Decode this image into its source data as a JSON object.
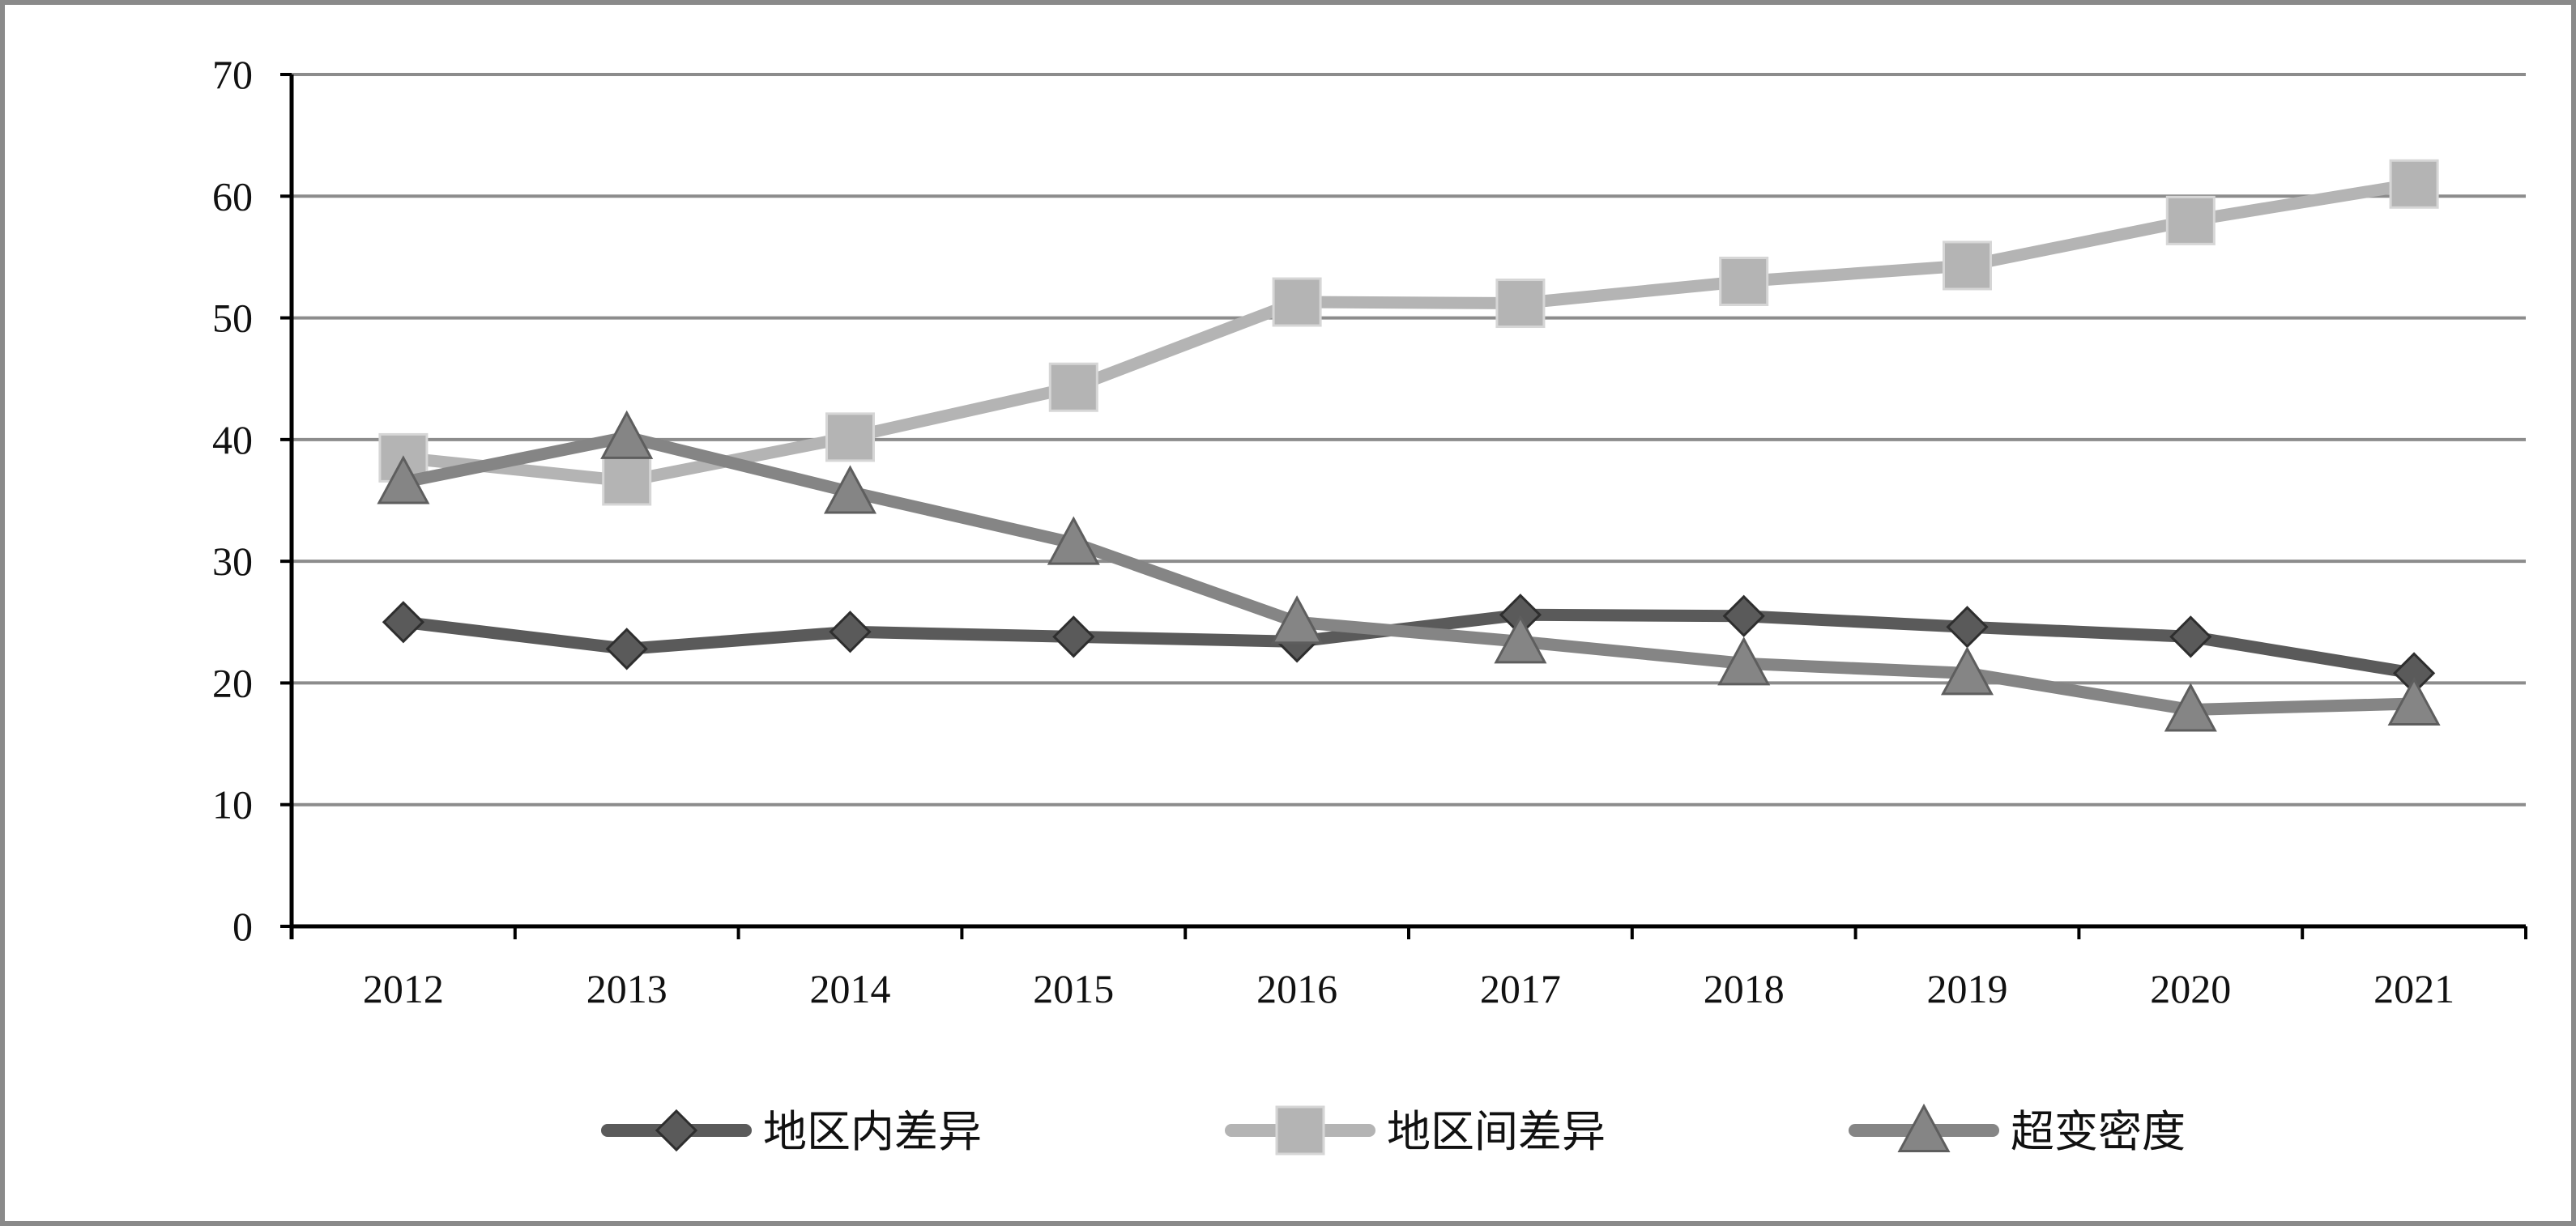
{
  "chart_data": {
    "type": "line",
    "title": "",
    "xlabel": "",
    "ylabel": "",
    "categories": [
      "2012",
      "2013",
      "2014",
      "2015",
      "2016",
      "2017",
      "2018",
      "2019",
      "2020",
      "2021"
    ],
    "ylim": [
      0,
      70
    ],
    "yticks": [
      "0",
      "10",
      "20",
      "30",
      "40",
      "50",
      "60",
      "70"
    ],
    "grid": "horizontal",
    "legend_position": "bottom",
    "series": [
      {
        "name": "地区内差异",
        "marker": "diamond",
        "color": "#5a5a5a",
        "values": [
          25.0,
          22.8,
          24.2,
          23.8,
          23.4,
          25.6,
          25.5,
          24.6,
          23.8,
          20.8
        ]
      },
      {
        "name": "地区间差异",
        "marker": "square",
        "color": "#b4b4b4",
        "values": [
          38.5,
          36.6,
          40.2,
          44.3,
          51.3,
          51.2,
          53.0,
          54.3,
          58.0,
          61.0
        ]
      },
      {
        "name": "超变密度",
        "marker": "triangle",
        "color": "#858585",
        "values": [
          36.5,
          40.2,
          35.7,
          31.5,
          25.0,
          23.4,
          21.6,
          20.8,
          17.8,
          18.3
        ]
      }
    ]
  }
}
